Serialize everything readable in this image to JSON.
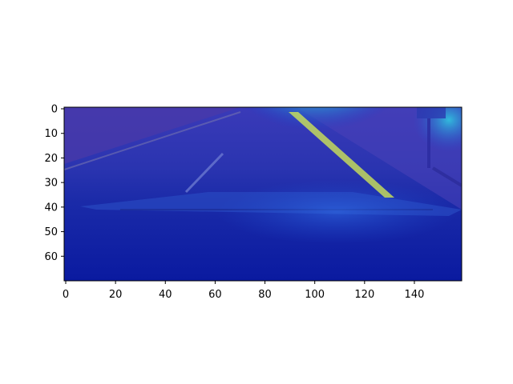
{
  "chart_data": {
    "type": "heatmap",
    "description": "Image of a road scene (top-down/forward camera view) overlaid with a jet-colormap saliency heatmap; hotspot centered near the top edge around x≈95.",
    "xlim": [
      0,
      159
    ],
    "ylim": [
      70,
      0
    ],
    "x_ticks": [
      0,
      20,
      40,
      60,
      80,
      100,
      120,
      140
    ],
    "y_ticks": [
      0,
      10,
      20,
      30,
      40,
      50,
      60
    ],
    "grid": false,
    "colors": {
      "background": "#1a2aa8",
      "hot": "#d01010",
      "warm": "#f0a020",
      "mid": "#30d0c0"
    },
    "hotspot": {
      "x": 97,
      "y": 2
    }
  }
}
